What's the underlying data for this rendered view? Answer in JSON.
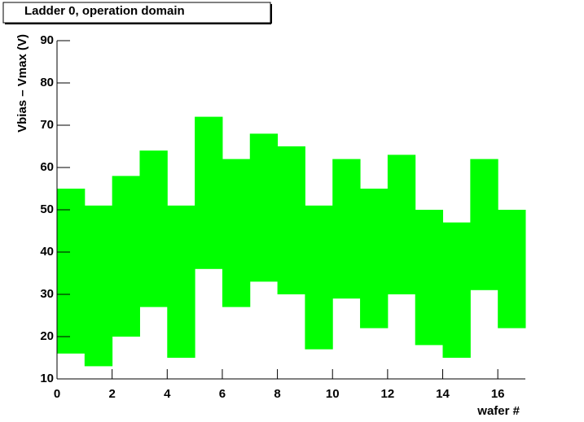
{
  "chart_data": {
    "type": "rangebar",
    "title": "Ladder  0, operation domain",
    "x_label": "wafer #",
    "y_label": "Vbias – Vmax (V)",
    "bins": [
      0,
      1,
      2,
      3,
      4,
      5,
      6,
      7,
      8,
      9,
      10,
      11,
      12,
      13,
      14,
      15,
      16,
      17
    ],
    "lower": [
      16,
      13,
      20,
      27,
      15,
      36,
      27,
      33,
      30,
      17,
      29,
      22,
      30,
      18,
      15,
      31,
      22
    ],
    "upper": [
      55,
      51,
      58,
      64,
      51,
      72,
      62,
      68,
      65,
      51,
      62,
      55,
      63,
      50,
      47,
      62,
      50
    ],
    "color": "#00ff00",
    "xlim": [
      0,
      17
    ],
    "xticks": [
      0,
      2,
      4,
      6,
      8,
      10,
      12,
      14,
      16
    ],
    "ylim": [
      10,
      90
    ],
    "yticks": [
      10,
      20,
      30,
      40,
      50,
      60,
      70,
      80,
      90
    ]
  }
}
